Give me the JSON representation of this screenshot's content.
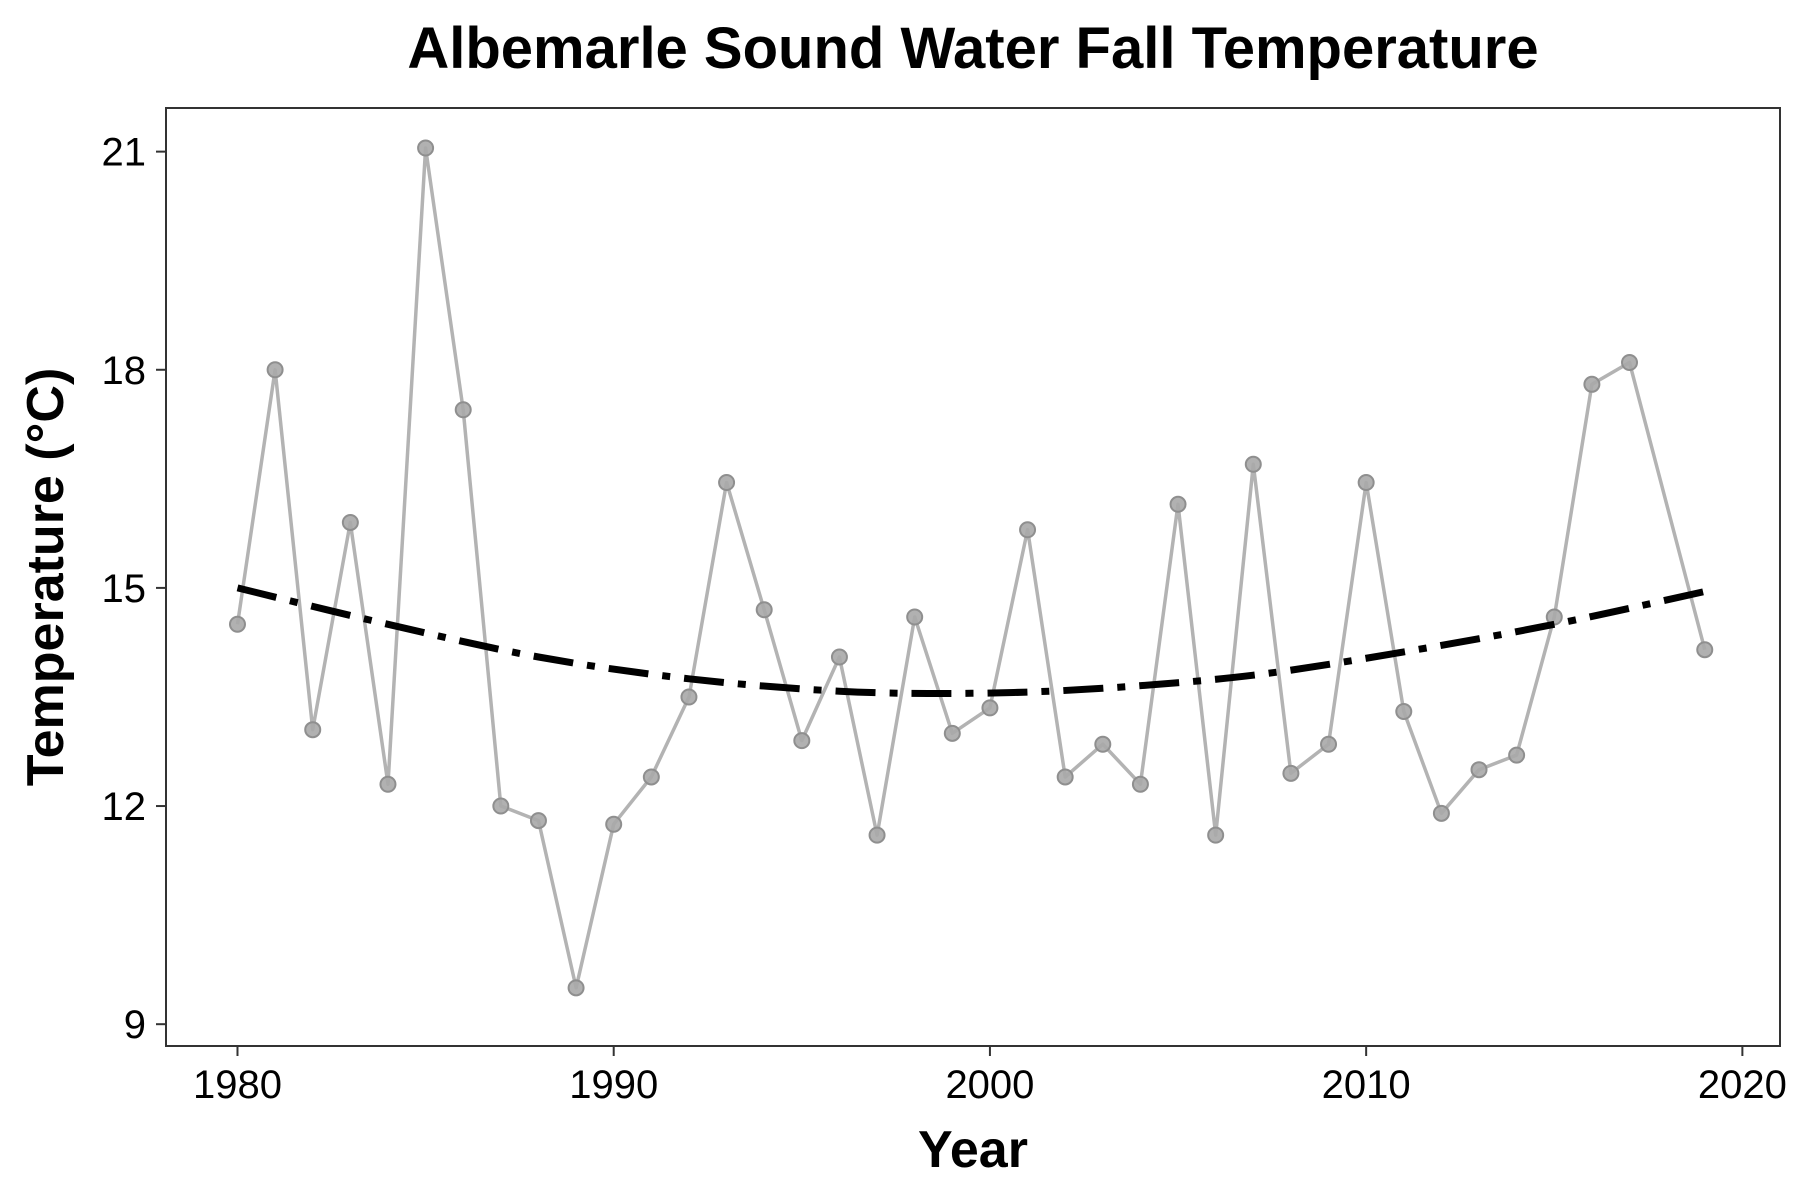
{
  "chart_data": {
    "type": "line",
    "title": "Albemarle Sound Water Fall Temperature",
    "xlabel": "Year",
    "ylabel": "Temperature (°C)",
    "xlim": [
      1978.1,
      2021.0
    ],
    "ylim": [
      8.7,
      21.6
    ],
    "x_ticks": [
      1980,
      1990,
      2000,
      2010,
      2020
    ],
    "y_ticks": [
      9,
      12,
      15,
      18,
      21
    ],
    "grid": false,
    "legend": "none",
    "series": [
      {
        "style": "observed",
        "color": "#b3b3b3",
        "x": [
          1980,
          1981,
          1982,
          1983,
          1984,
          1985,
          1986,
          1987,
          1988,
          1989,
          1990,
          1991,
          1992,
          1993,
          1994,
          1995,
          1996,
          1997,
          1998,
          1999,
          2000,
          2001,
          2002,
          2003,
          2004,
          2005,
          2006,
          2007,
          2008,
          2009,
          2010,
          2011,
          2012,
          2013,
          2014,
          2015,
          2016,
          2017,
          2019
        ],
        "values": [
          14.5,
          18.0,
          13.05,
          15.9,
          12.3,
          21.05,
          17.45,
          12.0,
          11.8,
          9.5,
          11.75,
          12.4,
          13.5,
          16.45,
          14.7,
          12.9,
          14.05,
          11.6,
          14.6,
          13.0,
          13.35,
          15.8,
          12.4,
          12.85,
          12.3,
          16.15,
          11.6,
          16.7,
          12.45,
          12.85,
          16.45,
          13.3,
          11.9,
          12.5,
          12.7,
          14.6,
          17.8,
          18.1,
          14.15
        ]
      },
      {
        "style": "trend",
        "color": "#000000",
        "x": [
          1980,
          1984,
          1988,
          1992,
          1996,
          1999.5,
          2003,
          2007,
          2011,
          2015,
          2019
        ],
        "values": [
          15.0,
          14.5,
          14.05,
          13.75,
          13.58,
          13.55,
          13.62,
          13.8,
          14.12,
          14.5,
          14.95
        ]
      }
    ]
  }
}
